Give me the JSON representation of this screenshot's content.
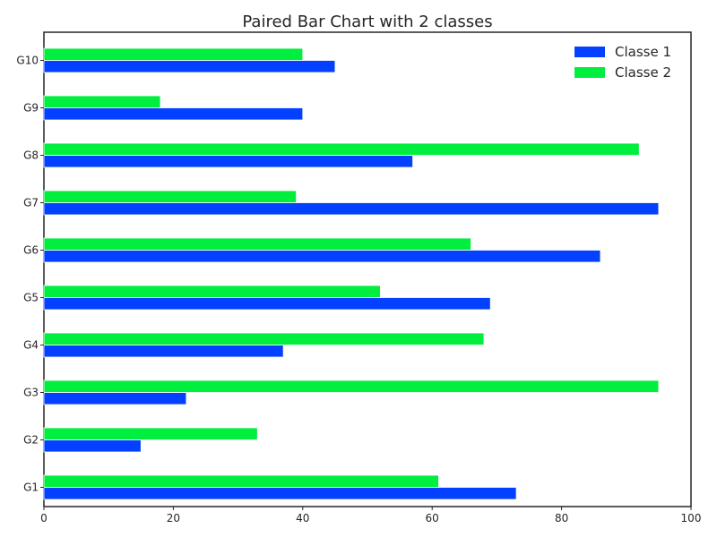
{
  "chart_data": {
    "type": "bar",
    "orientation": "horizontal",
    "title": "Paired Bar Chart with 2 classes",
    "xlabel": "",
    "ylabel": "",
    "categories": [
      "G1",
      "G2",
      "G3",
      "G4",
      "G5",
      "G6",
      "G7",
      "G8",
      "G9",
      "G10"
    ],
    "series": [
      {
        "name": "Classe 1",
        "color": "#0340ff",
        "values": [
          73,
          15,
          22,
          37,
          69,
          86,
          95,
          57,
          40,
          45
        ]
      },
      {
        "name": "Classe 2",
        "color": "#00ee3d",
        "values": [
          61,
          33,
          95,
          68,
          52,
          66,
          39,
          92,
          18,
          40
        ]
      }
    ],
    "xlim": [
      0,
      100
    ],
    "xticks": [
      0,
      20,
      40,
      60,
      80,
      100
    ],
    "grid": false,
    "legend_position": "top-right"
  }
}
